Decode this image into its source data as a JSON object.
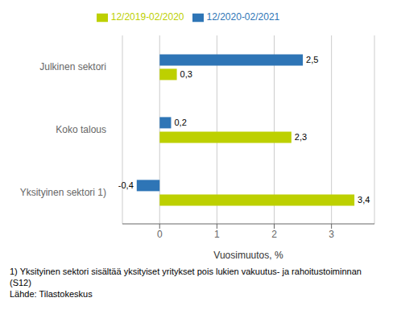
{
  "chart_data": {
    "type": "bar",
    "orientation": "horizontal",
    "categories": [
      "Yksityinen sektori 1)",
      "Koko talous",
      "Julkinen sektori"
    ],
    "series": [
      {
        "name": "12/2020-02/2021",
        "color": "#2E75B6",
        "values": [
          -0.4,
          0.2,
          2.5
        ],
        "value_labels": [
          "-0,4",
          "0,2",
          "2,5"
        ]
      },
      {
        "name": "12/2019-02/2020",
        "color": "#BDD000",
        "values": [
          3.4,
          2.3,
          0.3
        ],
        "value_labels": [
          "3,4",
          "2,3",
          "0,3"
        ]
      }
    ],
    "xlabel": "Vuosimuutos, %",
    "xlim": [
      -0.65,
      3.75
    ],
    "xticks": [
      0,
      1,
      2,
      3
    ],
    "grid": true,
    "legend": "top",
    "data_labels": true,
    "annotations": [
      "1) Yksityinen sektori sisältää yksityiset yritykset pois lukien vakuutus- ja rahoitustoiminnan",
      "(S12)",
      "Lähde: Tilastokeskus"
    ]
  }
}
